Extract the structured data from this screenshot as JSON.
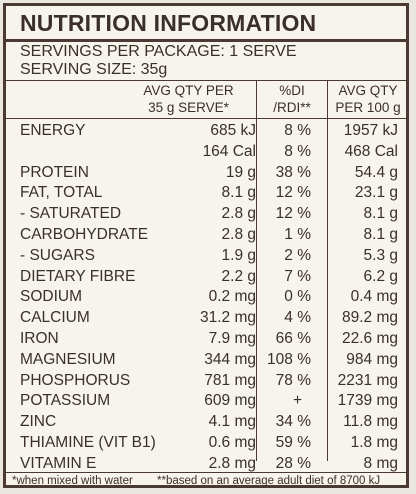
{
  "panel": {
    "title": "NUTRITION INFORMATION",
    "servings_per_package": "SERVINGS PER PACKAGE: 1 SERVE",
    "serving_size": "SERVING SIZE: 35g"
  },
  "headers": {
    "avg_qty_line1": "AVG QTY PER",
    "avg_qty_line2": "35 g SERVE*",
    "di_line1": "%DI",
    "di_line2": "/RDI**",
    "avg100_line1": "AVG QTY",
    "avg100_line2": "PER 100 g"
  },
  "rows": [
    {
      "name": "ENERGY",
      "qty": "685 kJ",
      "di": "8 %",
      "q100": "1957 kJ"
    },
    {
      "name": "",
      "qty": "164 Cal",
      "di": "8 %",
      "q100": "468 Cal"
    },
    {
      "name": "PROTEIN",
      "qty": "19 g",
      "di": "38 %",
      "q100": "54.4 g"
    },
    {
      "name": "FAT, TOTAL",
      "qty": "8.1 g",
      "di": "12 %",
      "q100": "23.1 g"
    },
    {
      "name": "- SATURATED",
      "qty": "2.8 g",
      "di": "12 %",
      "q100": "8.1 g"
    },
    {
      "name": "CARBOHYDRATE",
      "qty": "2.8 g",
      "di": "1 %",
      "q100": "8.1 g"
    },
    {
      "name": "- SUGARS",
      "qty": "1.9 g",
      "di": "2 %",
      "q100": "5.3 g"
    },
    {
      "name": "DIETARY FIBRE",
      "qty": "2.2 g",
      "di": "7 %",
      "q100": "6.2 g"
    },
    {
      "name": "SODIUM",
      "qty": "0.2 mg",
      "di": "0 %",
      "q100": "0.4 mg"
    },
    {
      "name": "CALCIUM",
      "qty": "31.2 mg",
      "di": "4 %",
      "q100": "89.2 mg"
    },
    {
      "name": "IRON",
      "qty": "7.9 mg",
      "di": "66 %",
      "q100": "22.6 mg"
    },
    {
      "name": "MAGNESIUM",
      "qty": "344 mg",
      "di": "108 %",
      "q100": "984 mg"
    },
    {
      "name": "PHOSPHORUS",
      "qty": "781 mg",
      "di": "78 %",
      "q100": "2231 mg"
    },
    {
      "name": "POTASSIUM",
      "qty": "609 mg",
      "di": "+",
      "q100": "1739 mg"
    },
    {
      "name": "ZINC",
      "qty": "4.1 mg",
      "di": "34 %",
      "q100": "11.8 mg"
    },
    {
      "name": "THIAMINE (VIT B1)",
      "qty": "0.6 mg",
      "di": "59 %",
      "q100": "1.8 mg"
    },
    {
      "name": "VITAMIN E",
      "qty": "2.8 mg",
      "di": "28 %",
      "q100": "8 mg"
    }
  ],
  "footnotes": {
    "left": "*when mixed with water",
    "right": "**based on an average adult diet of 8700 kJ"
  }
}
